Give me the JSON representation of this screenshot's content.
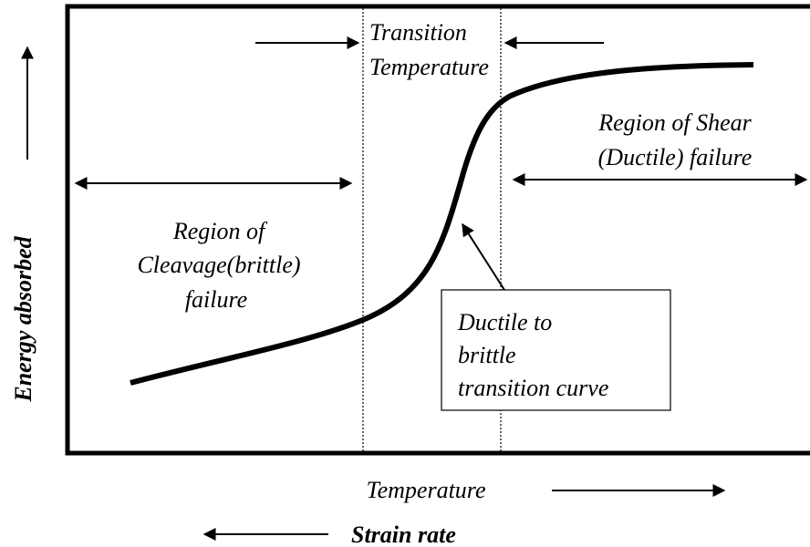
{
  "title": {
    "line1": "Transition",
    "line2": "Temperature"
  },
  "regions": {
    "brittle": {
      "lines": [
        "Region of",
        "Cleavage(brittle)",
        "failure"
      ]
    },
    "ductile": {
      "lines": [
        "Region of Shear",
        "(Ductile) failure"
      ]
    }
  },
  "callout": {
    "lines": [
      "Ductile to",
      "brittle",
      "transition curve"
    ]
  },
  "axes": {
    "y_label": "Energy absorbed",
    "x_label": "Temperature",
    "x_label2": "Strain rate"
  }
}
